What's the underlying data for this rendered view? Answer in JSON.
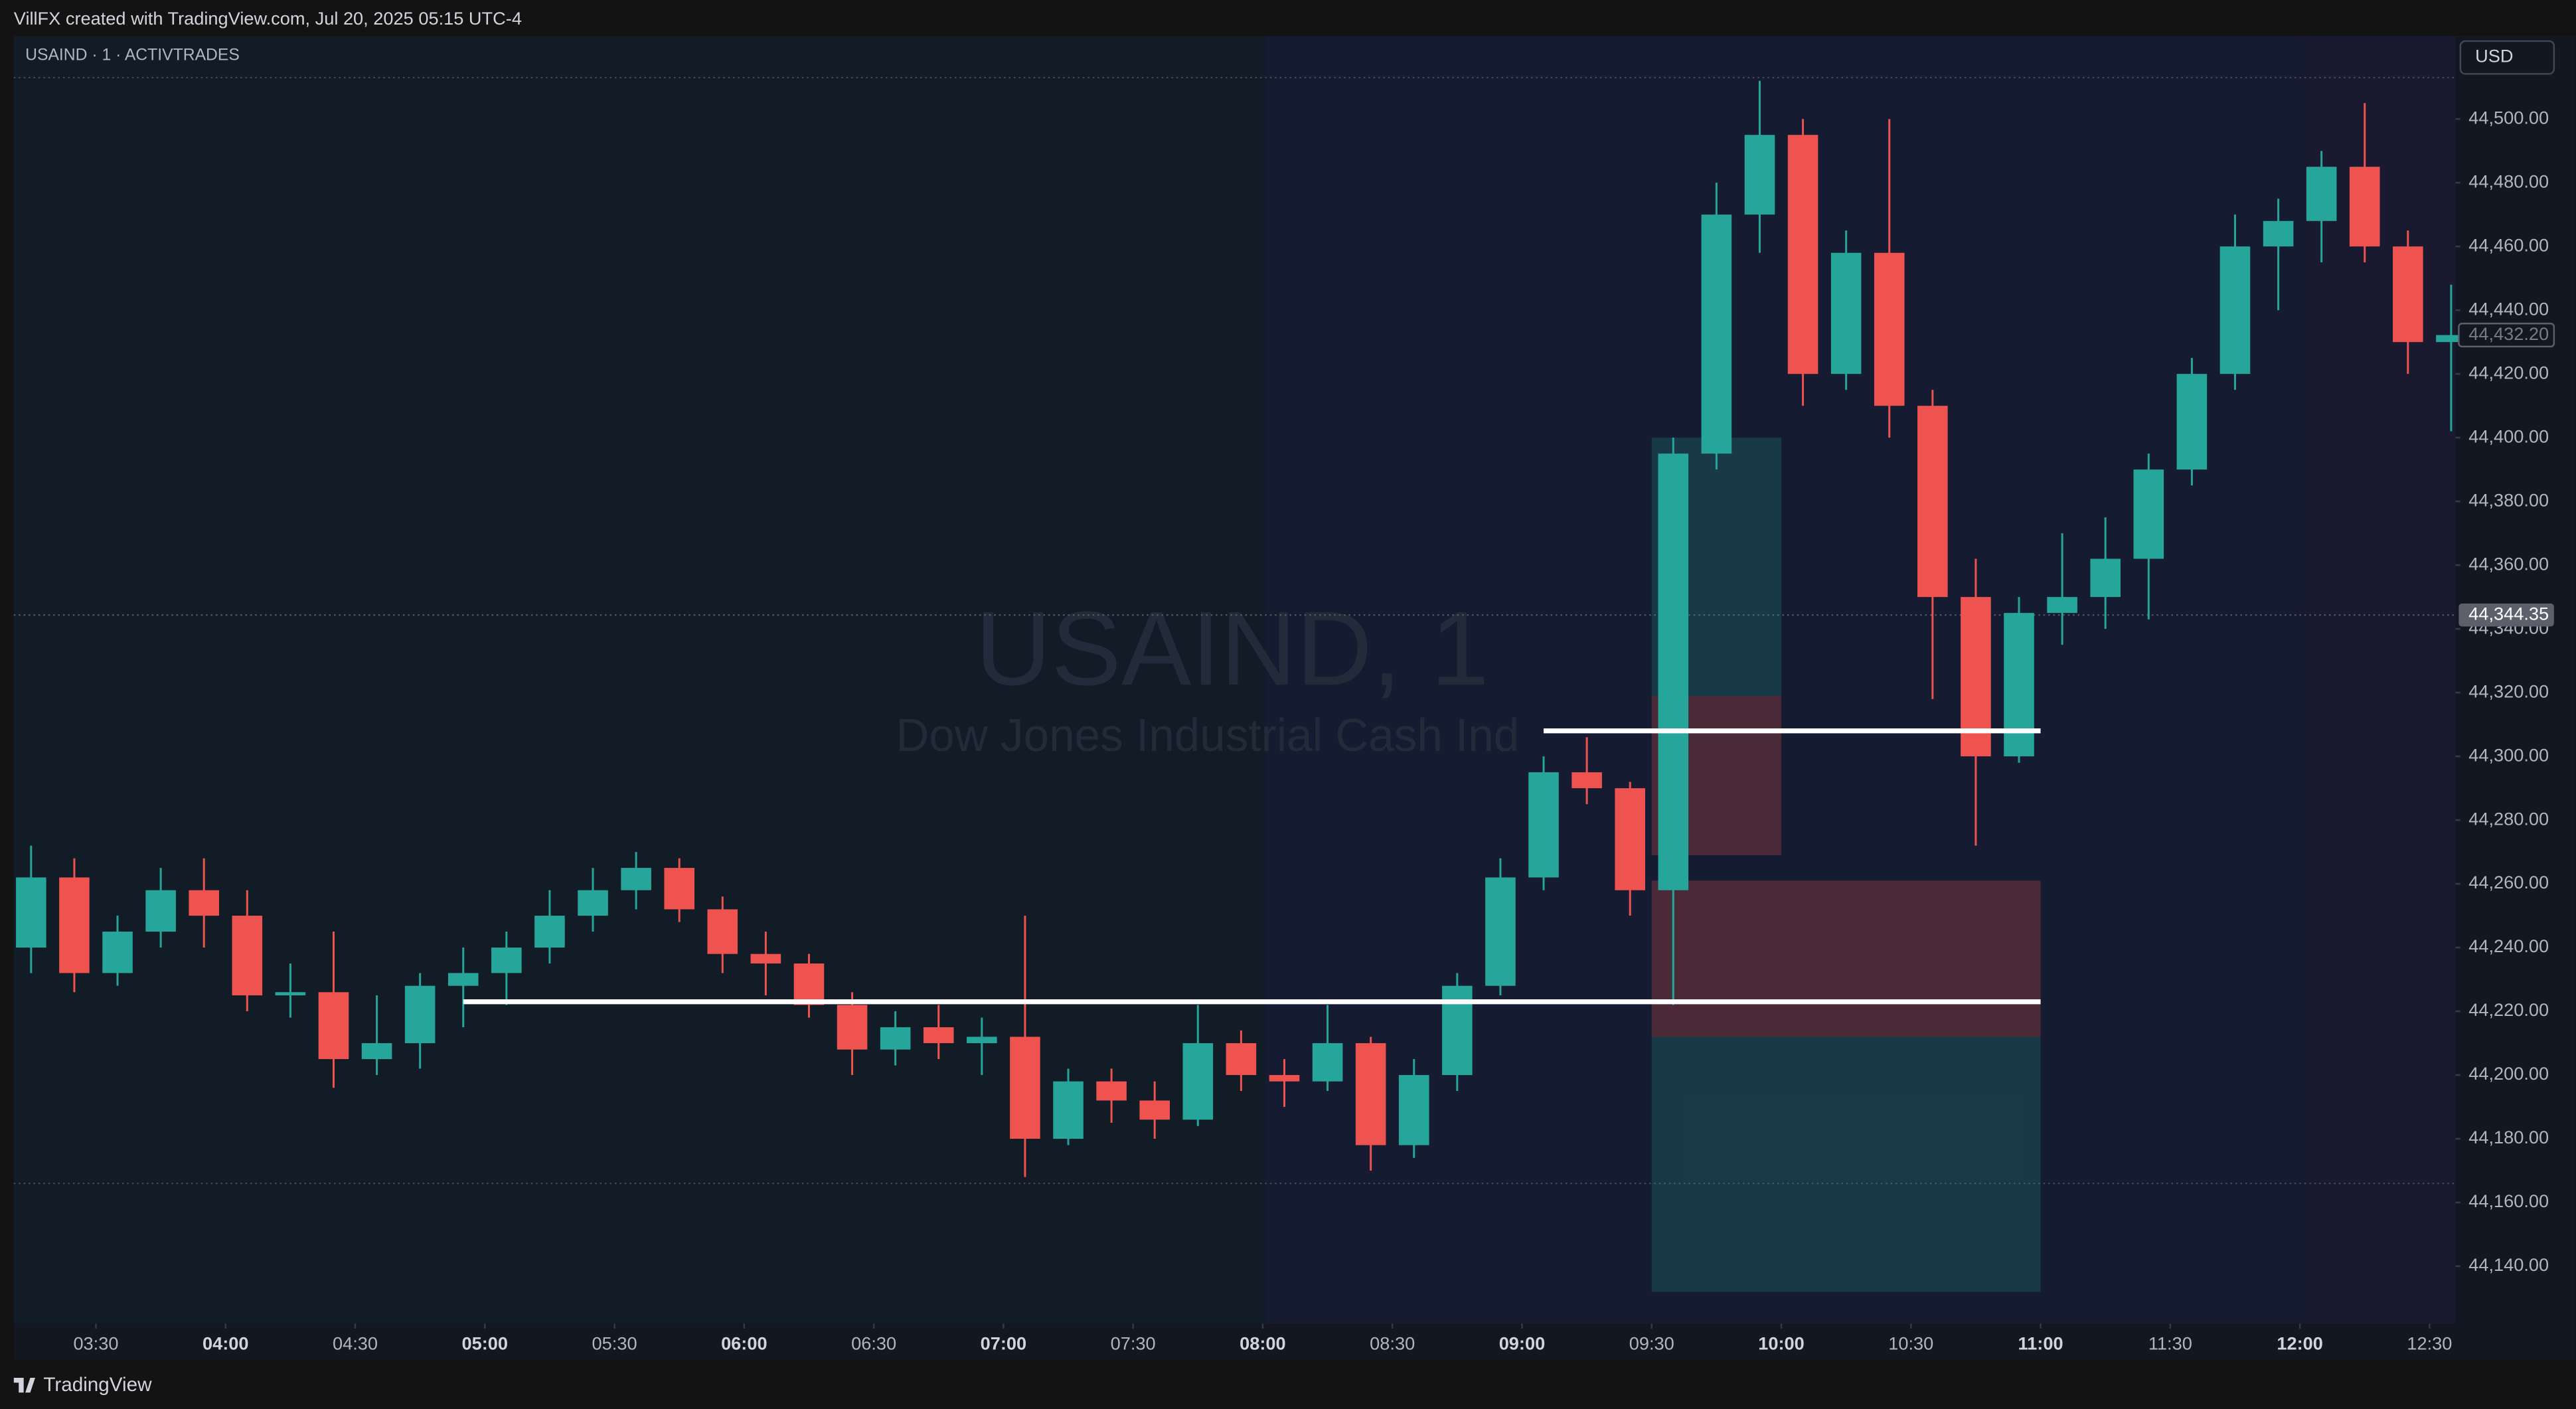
{
  "header": {
    "credit": "VillFX created with TradingView.com, Jul 20, 2025 05:15 UTC-4",
    "brand": "TradingView"
  },
  "chart_data": {
    "type": "candlestick",
    "symbol": "USAIND · 1 · ACTIVTRADES",
    "currency": "USD",
    "watermark": {
      "title": "USAIND, 1",
      "subtitle": "Dow Jones Industrial Cash Ind"
    },
    "colors": {
      "up": "#26a69a",
      "down": "#ef5350"
    },
    "x": [
      "03:10",
      "03:20",
      "03:30",
      "03:40",
      "03:50",
      "04:00",
      "04:10",
      "04:20",
      "04:30",
      "04:40",
      "04:50",
      "05:00",
      "05:10",
      "05:20",
      "05:30",
      "05:40",
      "05:50",
      "06:00",
      "06:10",
      "06:20",
      "06:30",
      "06:40",
      "06:50",
      "07:00",
      "07:10",
      "07:20",
      "07:30",
      "07:40",
      "07:50",
      "08:00",
      "08:10",
      "08:20",
      "08:30",
      "08:40",
      "08:50",
      "09:00",
      "09:10",
      "09:20",
      "09:30",
      "09:40",
      "09:50",
      "10:00",
      "10:10",
      "10:20",
      "10:30",
      "10:40",
      "10:50",
      "11:00",
      "11:10",
      "11:20",
      "11:30",
      "11:40",
      "11:50",
      "12:00",
      "12:10",
      "12:20",
      "12:30"
    ],
    "open": [
      44240,
      44262,
      44232,
      44245,
      44258,
      44250,
      44225,
      44226,
      44205,
      44210,
      44228,
      44232,
      44240,
      44250,
      44258,
      44265,
      44252,
      44238,
      44235,
      44222,
      44208,
      44215,
      44210,
      44212,
      44180,
      44198,
      44192,
      44186,
      44210,
      44200,
      44198,
      44210,
      44178,
      44200,
      44228,
      44262,
      44295,
      44290,
      44258,
      44395,
      44470,
      44495,
      44420,
      44458,
      44410,
      44350,
      44300,
      44345,
      44350,
      44362,
      44390,
      44420,
      44460,
      44468,
      44485,
      44460,
      44430
    ],
    "high": [
      44272,
      44268,
      44250,
      44265,
      44268,
      44258,
      44235,
      44245,
      44225,
      44232,
      44240,
      44245,
      44258,
      44265,
      44270,
      44268,
      44256,
      44245,
      44238,
      44226,
      44220,
      44222,
      44218,
      44250,
      44202,
      44202,
      44198,
      44222,
      44214,
      44205,
      44222,
      44212,
      44205,
      44232,
      44268,
      44300,
      44306,
      44292,
      44400,
      44480,
      44512,
      44500,
      44465,
      44500,
      44415,
      44362,
      44350,
      44370,
      44375,
      44395,
      44425,
      44470,
      44475,
      44490,
      44505,
      44465,
      44448
    ],
    "low": [
      44232,
      44226,
      44228,
      44240,
      44240,
      44220,
      44218,
      44196,
      44200,
      44202,
      44215,
      44222,
      44235,
      44245,
      44252,
      44248,
      44232,
      44225,
      44218,
      44200,
      44203,
      44205,
      44200,
      44168,
      44178,
      44185,
      44180,
      44184,
      44195,
      44190,
      44195,
      44170,
      44174,
      44195,
      44225,
      44258,
      44285,
      44250,
      44222,
      44390,
      44458,
      44410,
      44415,
      44400,
      44318,
      44272,
      44298,
      44335,
      44340,
      44343,
      44385,
      44415,
      44440,
      44455,
      44455,
      44420,
      44402
    ],
    "close": [
      44262,
      44232,
      44245,
      44258,
      44250,
      44225,
      44226,
      44205,
      44210,
      44228,
      44232,
      44240,
      44250,
      44258,
      44265,
      44252,
      44238,
      44235,
      44222,
      44208,
      44215,
      44210,
      44212,
      44180,
      44198,
      44192,
      44186,
      44210,
      44200,
      44198,
      44210,
      44178,
      44200,
      44228,
      44262,
      44295,
      44290,
      44258,
      44395,
      44470,
      44495,
      44420,
      44458,
      44410,
      44350,
      44300,
      44345,
      44350,
      44362,
      44390,
      44420,
      44460,
      44468,
      44485,
      44460,
      44430,
      44432.2
    ],
    "xlim": [
      "03:11",
      "12:36"
    ],
    "xticks": [
      "03:30",
      "04:00",
      "04:30",
      "05:00",
      "05:30",
      "06:00",
      "06:30",
      "07:00",
      "07:30",
      "08:00",
      "08:30",
      "09:00",
      "09:30",
      "10:00",
      "10:30",
      "11:00",
      "11:30",
      "12:00",
      "12:30"
    ],
    "ylim": [
      44122,
      44526
    ],
    "yticks": [
      {
        "value": 44140,
        "label": "44,140.00"
      },
      {
        "value": 44160,
        "label": "44,160.00"
      },
      {
        "value": 44180,
        "label": "44,180.00"
      },
      {
        "value": 44200,
        "label": "44,200.00"
      },
      {
        "value": 44220,
        "label": "44,220.00"
      },
      {
        "value": 44240,
        "label": "44,240.00"
      },
      {
        "value": 44260,
        "label": "44,260.00"
      },
      {
        "value": 44280,
        "label": "44,280.00"
      },
      {
        "value": 44300,
        "label": "44,300.00"
      },
      {
        "value": 44320,
        "label": "44,320.00"
      },
      {
        "value": 44340,
        "label": "44,340.00"
      },
      {
        "value": 44360,
        "label": "44,360.00"
      },
      {
        "value": 44380,
        "label": "44,380.00"
      },
      {
        "value": 44400,
        "label": "44,400.00"
      },
      {
        "value": 44420,
        "label": "44,420.00"
      },
      {
        "value": 44440,
        "label": "44,440.00"
      },
      {
        "value": 44460,
        "label": "44,460.00"
      },
      {
        "value": 44480,
        "label": "44,480.00"
      },
      {
        "value": 44500,
        "label": "44,500.00"
      }
    ],
    "price_labels": [
      {
        "value": 44432.2,
        "label": "44,432.20"
      },
      {
        "value": 44344.35,
        "label": "44,344.35"
      }
    ],
    "dotted_levels": [
      44513,
      44166
    ],
    "levels": [
      {
        "price": 44308,
        "from": "09:05",
        "to": "11:00"
      },
      {
        "price": 44223,
        "from": "04:55",
        "to": "11:00"
      }
    ],
    "zones": [
      {
        "top": 44400,
        "bottom": 44319,
        "from": "09:30",
        "to": "10:00",
        "color": "rgba(38,166,154,0.22)"
      },
      {
        "top": 44319,
        "bottom": 44269,
        "from": "09:30",
        "to": "10:00",
        "color": "rgba(239,83,80,0.25)"
      },
      {
        "top": 44261,
        "bottom": 44212,
        "from": "09:30",
        "to": "11:00",
        "color": "rgba(239,83,80,0.25)"
      },
      {
        "top": 44212,
        "bottom": 44132,
        "from": "09:30",
        "to": "11:00",
        "color": "rgba(38,166,154,0.22)"
      }
    ]
  }
}
